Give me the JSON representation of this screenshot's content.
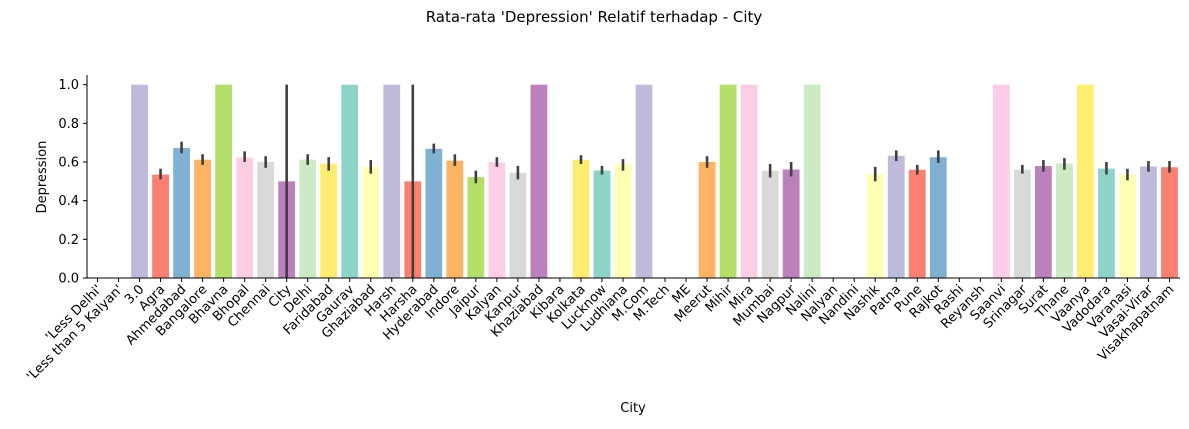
{
  "chart_data": {
    "type": "bar",
    "title": "Rata-rata 'Depression' Relatif terhadap - City",
    "xlabel": "City",
    "ylabel": "Depression",
    "ylim": [
      0,
      1.05
    ],
    "yticks": [
      0.0,
      0.2,
      0.4,
      0.6,
      0.8,
      1.0
    ],
    "ytick_labels": [
      "0.0",
      "0.2",
      "0.4",
      "0.6",
      "0.8",
      "1.0"
    ],
    "grid": false,
    "error_bars": true,
    "categories": [
      "'Less Delhi'",
      "'Less than 5 Kalyan'",
      "3.0",
      "Agra",
      "Ahmedabad",
      "Bangalore",
      "Bhavna",
      "Bhopal",
      "Chennai",
      "City",
      "Delhi",
      "Faridabad",
      "Gaurav",
      "Ghaziabad",
      "Harsh",
      "Harsha",
      "Hyderabad",
      "Indore",
      "Jaipur",
      "Kalyan",
      "Kanpur",
      "Khaziabad",
      "Kibara",
      "Kolkata",
      "Lucknow",
      "Ludhiana",
      "M.Com",
      "M.Tech",
      "ME",
      "Meerut",
      "Mihir",
      "Mira",
      "Mumbai",
      "Nagpur",
      "Nalini",
      "Nalyan",
      "Nandini",
      "Nashik",
      "Patna",
      "Pune",
      "Rajkot",
      "Rashi",
      "Reyansh",
      "Saanvi",
      "Srinagar",
      "Surat",
      "Thane",
      "Vaanya",
      "Vadodara",
      "Varanasi",
      "Vasai-Virar",
      "Visakhapatnam"
    ],
    "values": [
      0.0,
      0.0,
      1.0,
      0.535,
      0.672,
      0.612,
      1.0,
      0.623,
      0.601,
      0.5,
      0.612,
      0.591,
      1.0,
      0.575,
      1.0,
      0.5,
      0.668,
      0.607,
      0.522,
      0.598,
      0.545,
      1.0,
      0.0,
      0.611,
      0.556,
      0.588,
      1.0,
      0.0,
      0.0,
      0.6,
      1.0,
      1.0,
      0.555,
      0.561,
      1.0,
      0.0,
      0.0,
      0.537,
      0.632,
      0.56,
      0.625,
      0.0,
      0.0,
      1.0,
      0.56,
      0.579,
      0.592,
      1.0,
      0.566,
      0.535,
      0.577,
      0.573
    ],
    "ci_low": [
      null,
      null,
      null,
      0.51,
      0.645,
      0.585,
      null,
      0.6,
      0.57,
      0.0,
      0.585,
      0.555,
      null,
      0.54,
      null,
      0.0,
      0.645,
      0.58,
      0.49,
      0.575,
      0.51,
      null,
      null,
      0.59,
      0.535,
      0.555,
      null,
      null,
      null,
      0.57,
      null,
      null,
      0.52,
      0.525,
      null,
      null,
      null,
      0.5,
      0.605,
      0.535,
      0.595,
      null,
      null,
      null,
      0.54,
      0.55,
      0.56,
      null,
      0.535,
      0.505,
      0.55,
      0.545
    ],
    "ci_high": [
      null,
      null,
      null,
      0.565,
      0.705,
      0.64,
      null,
      0.655,
      0.63,
      1.0,
      0.64,
      0.625,
      null,
      0.61,
      null,
      1.0,
      0.695,
      0.64,
      0.555,
      0.625,
      0.58,
      null,
      null,
      0.635,
      0.58,
      0.615,
      null,
      null,
      null,
      0.63,
      null,
      null,
      0.59,
      0.6,
      null,
      null,
      null,
      0.575,
      0.66,
      0.585,
      0.66,
      null,
      null,
      null,
      0.585,
      0.61,
      0.62,
      null,
      0.6,
      0.565,
      0.605,
      0.605
    ],
    "palette": [
      "#8dd3c7",
      "#ffffb3",
      "#bebada",
      "#fb8072",
      "#80b1d3",
      "#fdb462",
      "#b3de69",
      "#fccde5",
      "#d9d9d9",
      "#bc80bd",
      "#ccebc5",
      "#ffed6f"
    ],
    "error_color": "#404040"
  }
}
